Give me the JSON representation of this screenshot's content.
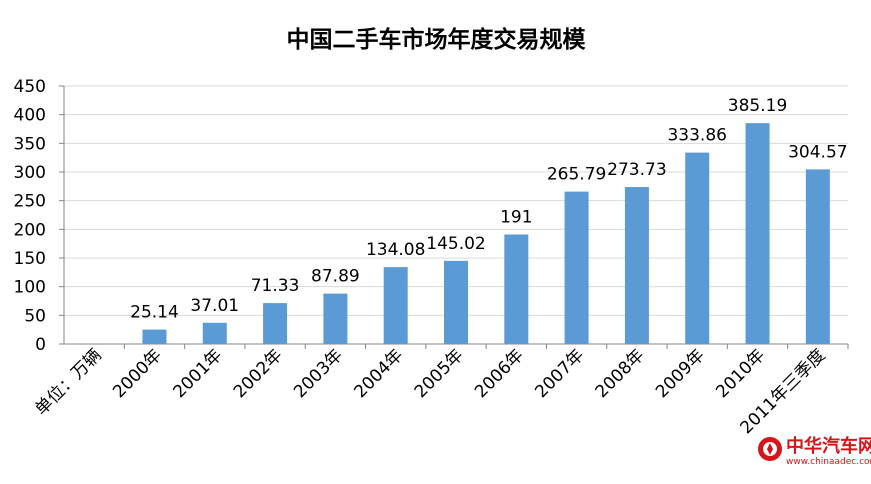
{
  "chart_data": {
    "type": "bar",
    "title": "中国二手车市场年度交易规模",
    "categories": [
      "单位：万辆",
      "2000年",
      "2001年",
      "2002年",
      "2003年",
      "2004年",
      "2005年",
      "2006年",
      "2007年",
      "2008年",
      "2009年",
      "2010年",
      "2011年三季度"
    ],
    "values": [
      null,
      25.14,
      37.01,
      71.33,
      87.89,
      134.08,
      145.02,
      191,
      265.79,
      273.73,
      333.86,
      385.19,
      304.57
    ],
    "value_labels": [
      "",
      "25.14",
      "37.01",
      "71.33",
      "87.89",
      "134.08",
      "145.02",
      "191",
      "265.79",
      "273.73",
      "333.86",
      "385.19",
      "304.57"
    ],
    "ylim": [
      0,
      450
    ],
    "yticks": [
      0,
      50,
      100,
      150,
      200,
      250,
      300,
      350,
      400,
      450
    ],
    "grid": true,
    "bar_color": "#5b9bd5"
  },
  "watermark": {
    "name": "中华汽车网校",
    "url": "www.chinaadec.com",
    "color": "#d7141a"
  }
}
